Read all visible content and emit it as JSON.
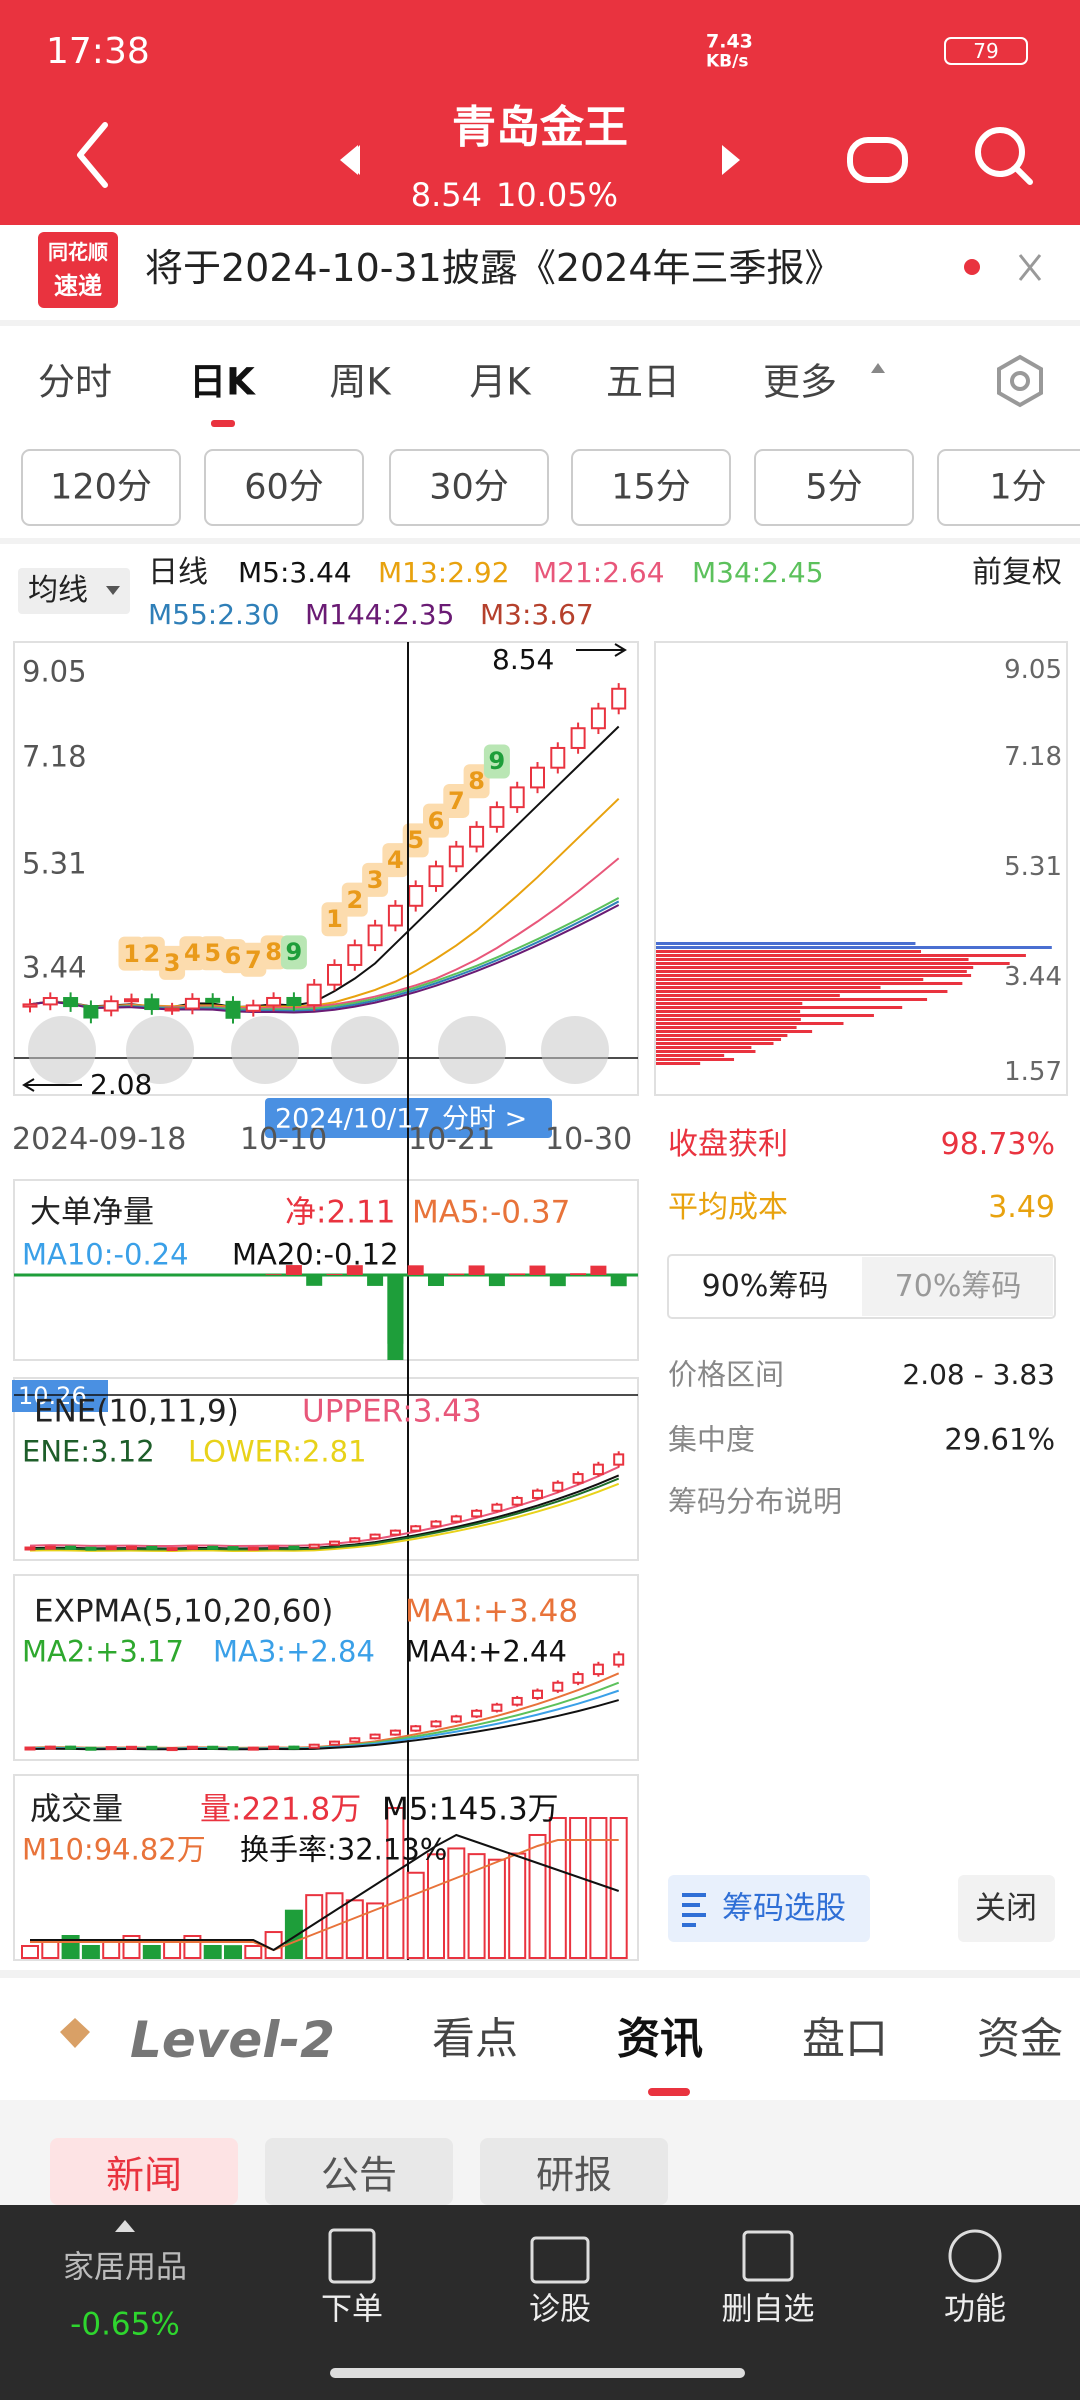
{
  "status_bar": {
    "time": "17:38",
    "net_speed": "7.43",
    "net_unit": "KB/s",
    "battery": "79"
  },
  "header": {
    "title": "青岛金王",
    "price": "8.54",
    "change": "10.05%"
  },
  "notice": {
    "logo": [
      "同花顺",
      "速递"
    ],
    "text": "将于2024-10-31披露《2024年三季报》"
  },
  "period_tabs": [
    "分时",
    "日K",
    "周K",
    "月K",
    "五日",
    "更多"
  ],
  "minute_tabs": [
    "120分",
    "60分",
    "30分",
    "15分",
    "5分",
    "1分"
  ],
  "ma_legend": {
    "selector": "均线",
    "period": "日线",
    "items": [
      "M5:3.44",
      "M13:2.92",
      "M21:2.64",
      "M34:2.45",
      "M55:2.30",
      "M144:2.35",
      "M3:3.67"
    ],
    "adjust": "前复权"
  },
  "kline": {
    "price_labels": [
      "9.05",
      "7.18",
      "5.31",
      "3.44"
    ],
    "high_label": "8.54",
    "low_label": "2.08",
    "dates": [
      "2024-09-18",
      "10-10",
      "10-21",
      "10-30"
    ],
    "cursor_date": "2024/10/17",
    "cursor_link": "分时 >",
    "signals": [
      "1",
      "2",
      "3",
      "4",
      "5",
      "6",
      "7",
      "8",
      "9",
      "1",
      "2",
      "3",
      "4",
      "5",
      "6",
      "7",
      "8",
      "9"
    ]
  },
  "chip": {
    "price_labels": [
      "9.05",
      "7.18",
      "5.31",
      "3.44",
      "1.57"
    ],
    "profit_label": "收盘获利",
    "profit": "98.73%",
    "cost_label": "平均成本",
    "cost": "3.49",
    "tabs": [
      "90%筹码",
      "70%筹码"
    ],
    "range_label": "价格区间",
    "range": "2.08 - 3.83",
    "concentration_label": "集中度",
    "concentration": "29.61%",
    "help": "筹码分布说明",
    "select": "筹码选股",
    "close": "关闭"
  },
  "indicators": [
    {
      "name": "大单净量",
      "items": [
        "净:2.11",
        "MA5:-0.37",
        "MA10:-0.24",
        "MA20:-0.12"
      ]
    },
    {
      "name": "ENE(10,11,9)",
      "cursor_value": "10.26",
      "items": [
        "UPPER:3.43",
        "ENE:3.12",
        "LOWER:2.81"
      ]
    },
    {
      "name": "EXPMA(5,10,20,60)",
      "items": [
        "MA1:+3.48",
        "MA2:+3.17",
        "MA3:+2.84",
        "MA4:+2.44"
      ]
    },
    {
      "name": "成交量",
      "items": [
        "量:221.8万",
        "M5:145.3万",
        "M10:94.82万",
        "换手率:32.13%"
      ]
    }
  ],
  "bottom_tabs": [
    "Level-2",
    "看点",
    "资讯",
    "盘口",
    "资金"
  ],
  "news_tabs": [
    "新闻",
    "公告",
    "研报"
  ],
  "sector": {
    "name": "家居用品",
    "change": "-0.65%"
  },
  "toolbar": [
    "下单",
    "诊股",
    "删自选",
    "功能"
  ]
}
